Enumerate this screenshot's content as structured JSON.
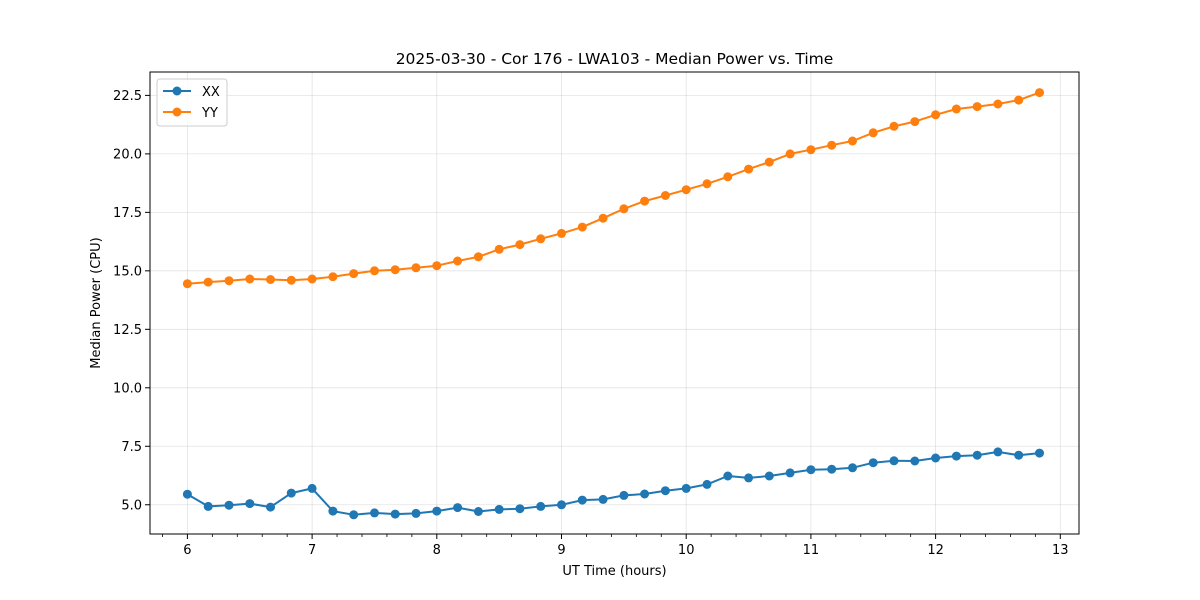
{
  "chart_data": {
    "type": "line",
    "title": "2025-03-30 - Cor 176 - LWA103 - Median Power vs. Time",
    "xlabel": "UT Time (hours)",
    "ylabel": "Median Power (CPU)",
    "xlim": [
      5.7,
      13.15
    ],
    "ylim": [
      3.75,
      23.5
    ],
    "xticks": [
      6,
      7,
      8,
      9,
      10,
      11,
      12,
      13
    ],
    "xticks_labels": [
      "6",
      "7",
      "8",
      "9",
      "10",
      "11",
      "12",
      "13"
    ],
    "xminor_step": 0.2,
    "yticks": [
      5.0,
      7.5,
      10.0,
      12.5,
      15.0,
      17.5,
      20.0,
      22.5
    ],
    "yticks_labels": [
      "5.0",
      "7.5",
      "10.0",
      "12.5",
      "15.0",
      "17.5",
      "20.0",
      "22.5"
    ],
    "grid": true,
    "legend_position": "top-left",
    "x": [
      6.0,
      6.1667,
      6.3333,
      6.5,
      6.6667,
      6.8333,
      7.0,
      7.1667,
      7.3333,
      7.5,
      7.6667,
      7.8333,
      8.0,
      8.1667,
      8.3333,
      8.5,
      8.6667,
      8.8333,
      9.0,
      9.1667,
      9.3333,
      9.5,
      9.6667,
      9.8333,
      10.0,
      10.1667,
      10.3333,
      10.5,
      10.6667,
      10.8333,
      11.0,
      11.1667,
      11.3333,
      11.5,
      11.6667,
      11.8333,
      12.0,
      12.1667,
      12.3333,
      12.5,
      12.6667,
      12.8333
    ],
    "series": [
      {
        "name": "XX",
        "color": "#1f77b4",
        "values": [
          5.45,
          4.93,
          4.98,
          5.05,
          4.9,
          5.5,
          5.7,
          4.73,
          4.57,
          4.65,
          4.6,
          4.63,
          4.73,
          4.88,
          4.71,
          4.8,
          4.83,
          4.93,
          5.0,
          5.2,
          5.23,
          5.4,
          5.46,
          5.6,
          5.7,
          5.87,
          6.23,
          6.15,
          6.23,
          6.36,
          6.5,
          6.52,
          6.58,
          6.8,
          6.88,
          6.87,
          7.0,
          7.08,
          7.12,
          7.26,
          7.12,
          7.21
        ]
      },
      {
        "name": "YY",
        "color": "#ff7f0e",
        "values": [
          14.45,
          14.52,
          14.58,
          14.65,
          14.63,
          14.6,
          14.65,
          14.75,
          14.88,
          15.0,
          15.05,
          15.13,
          15.22,
          15.42,
          15.6,
          15.92,
          16.12,
          16.37,
          16.6,
          16.87,
          17.25,
          17.65,
          17.98,
          18.22,
          18.47,
          18.72,
          19.02,
          19.35,
          19.65,
          20.0,
          20.18,
          20.37,
          20.55,
          20.9,
          21.18,
          21.38,
          21.67,
          21.92,
          22.02,
          22.13,
          22.3,
          22.62
        ]
      }
    ]
  }
}
